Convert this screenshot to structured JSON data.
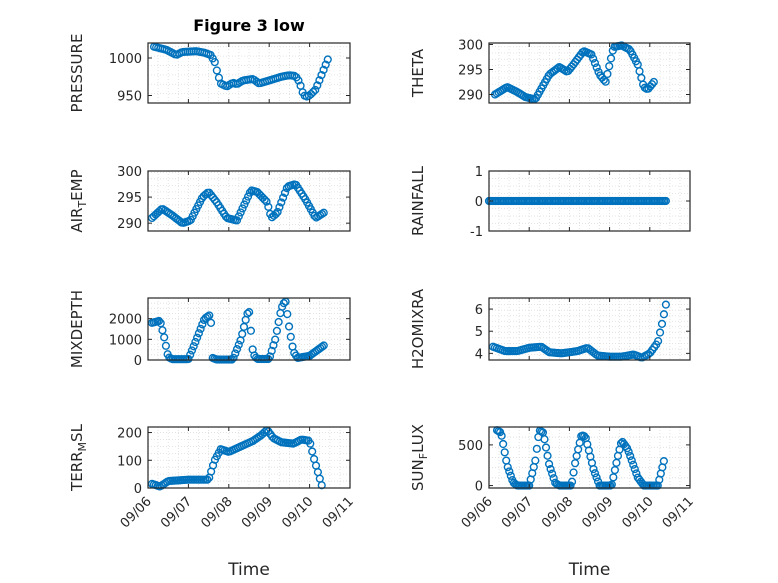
{
  "figure_title": "Figure 3 low",
  "xlabel": "Time",
  "x_ticks": [
    "09/06",
    "09/07",
    "09/08",
    "09/09",
    "09/10",
    "09/11"
  ],
  "colors": {
    "marker": "#0072BD",
    "axis": "#262626",
    "grid": "#dcdcdc"
  },
  "chart_data": [
    {
      "type": "scatter",
      "title": "Figure 3 low",
      "ylabel": "PRESSURE",
      "xlim": [
        0,
        5
      ],
      "ylim": [
        940,
        1020
      ],
      "yticks": [
        950,
        1000
      ],
      "keys": [
        [
          0.15,
          1015
        ],
        [
          0.45,
          1011
        ],
        [
          0.7,
          1004
        ],
        [
          0.85,
          1008
        ],
        [
          1.2,
          1009
        ],
        [
          1.4,
          1007
        ],
        [
          1.55,
          1004
        ],
        [
          1.65,
          995
        ],
        [
          1.72,
          980
        ],
        [
          1.8,
          966
        ],
        [
          1.95,
          962
        ],
        [
          2.1,
          967
        ],
        [
          2.2,
          965
        ],
        [
          2.35,
          970
        ],
        [
          2.6,
          972
        ],
        [
          2.75,
          966
        ],
        [
          3.0,
          970
        ],
        [
          3.3,
          975
        ],
        [
          3.5,
          977
        ],
        [
          3.65,
          976
        ],
        [
          3.75,
          968
        ],
        [
          3.82,
          955
        ],
        [
          3.9,
          948
        ],
        [
          4.0,
          950
        ],
        [
          4.15,
          958
        ],
        [
          4.3,
          978
        ],
        [
          4.45,
          998
        ]
      ],
      "n": 84
    },
    {
      "type": "scatter",
      "ylabel": "THETA",
      "xlim": [
        0,
        5
      ],
      "ylim": [
        288.3,
        300.3
      ],
      "yticks": [
        290,
        295,
        300
      ],
      "keys": [
        [
          0.15,
          290
        ],
        [
          0.45,
          291.5
        ],
        [
          0.7,
          290.5
        ],
        [
          0.9,
          289.5
        ],
        [
          1.15,
          289
        ],
        [
          1.5,
          294
        ],
        [
          1.75,
          295.5
        ],
        [
          1.95,
          294.5
        ],
        [
          2.1,
          296
        ],
        [
          2.35,
          298.7
        ],
        [
          2.55,
          298
        ],
        [
          2.75,
          294
        ],
        [
          2.9,
          292.5
        ],
        [
          3.0,
          296
        ],
        [
          3.1,
          299.5
        ],
        [
          3.3,
          299.8
        ],
        [
          3.5,
          299
        ],
        [
          3.7,
          296
        ],
        [
          3.85,
          291.5
        ],
        [
          3.95,
          291
        ],
        [
          4.1,
          292.5
        ]
      ],
      "n": 90
    },
    {
      "type": "scatter",
      "ylabel": "AIRTEMP",
      "ylabel_main": "AIR",
      "ylabel_sub": "T",
      "ylabel_rest": "EMP",
      "xlim": [
        0,
        5
      ],
      "ylim": [
        288.5,
        300
      ],
      "yticks": [
        290,
        295,
        300
      ],
      "keys": [
        [
          0.1,
          291
        ],
        [
          0.35,
          292.8
        ],
        [
          0.6,
          291.5
        ],
        [
          0.85,
          290
        ],
        [
          1.05,
          290.5
        ],
        [
          1.35,
          295
        ],
        [
          1.5,
          296
        ],
        [
          1.7,
          294
        ],
        [
          1.95,
          291
        ],
        [
          2.2,
          290.5
        ],
        [
          2.35,
          293
        ],
        [
          2.55,
          296.3
        ],
        [
          2.7,
          296
        ],
        [
          2.95,
          294
        ],
        [
          3.05,
          291
        ],
        [
          3.2,
          292
        ],
        [
          3.45,
          297
        ],
        [
          3.65,
          297.5
        ],
        [
          3.9,
          294.5
        ],
        [
          4.15,
          291
        ],
        [
          4.35,
          292
        ]
      ],
      "n": 94
    },
    {
      "type": "scatter",
      "ylabel": "RAINFALL",
      "xlim": [
        0,
        5
      ],
      "ylim": [
        -1,
        1
      ],
      "yticks": [
        -1,
        0,
        1
      ],
      "keys": [
        [
          0.0,
          0
        ],
        [
          4.4,
          0
        ]
      ],
      "n": 110
    },
    {
      "type": "scatter",
      "ylabel": "MIXDEPTH",
      "xlim": [
        0,
        5
      ],
      "ylim": [
        0,
        3000
      ],
      "yticks": [
        0,
        1000,
        2000
      ],
      "keys": [
        [
          0.1,
          1800
        ],
        [
          0.3,
          1900
        ],
        [
          0.4,
          1100
        ],
        [
          0.5,
          150
        ],
        [
          0.6,
          40
        ],
        [
          1.0,
          40
        ],
        [
          1.2,
          1000
        ],
        [
          1.4,
          2000
        ],
        [
          1.55,
          2200
        ],
        [
          1.6,
          100
        ],
        [
          1.7,
          20
        ],
        [
          2.1,
          20
        ],
        [
          2.3,
          1000
        ],
        [
          2.45,
          2200
        ],
        [
          2.5,
          2400
        ],
        [
          2.6,
          300
        ],
        [
          2.7,
          50
        ],
        [
          3.0,
          50
        ],
        [
          3.15,
          1000
        ],
        [
          3.3,
          2500
        ],
        [
          3.4,
          2900
        ],
        [
          3.5,
          1500
        ],
        [
          3.6,
          400
        ],
        [
          3.7,
          100
        ],
        [
          4.0,
          200
        ],
        [
          4.35,
          700
        ]
      ],
      "n": 100
    },
    {
      "type": "scatter",
      "ylabel": "H2OMIXRA",
      "xlim": [
        0,
        5
      ],
      "ylim": [
        3.7,
        6.5
      ],
      "yticks": [
        4,
        5,
        6
      ],
      "keys": [
        [
          0.1,
          4.3
        ],
        [
          0.4,
          4.1
        ],
        [
          0.7,
          4.1
        ],
        [
          1.0,
          4.25
        ],
        [
          1.3,
          4.3
        ],
        [
          1.5,
          4.05
        ],
        [
          1.8,
          4.0
        ],
        [
          2.2,
          4.1
        ],
        [
          2.45,
          4.25
        ],
        [
          2.7,
          3.9
        ],
        [
          3.0,
          3.85
        ],
        [
          3.3,
          3.85
        ],
        [
          3.6,
          3.95
        ],
        [
          3.8,
          3.8
        ],
        [
          4.0,
          4.0
        ],
        [
          4.2,
          4.5
        ],
        [
          4.3,
          5.3
        ],
        [
          4.4,
          6.2
        ]
      ],
      "n": 90
    },
    {
      "type": "scatter",
      "ylabel": "TERRMSL",
      "ylabel_main": "TERR",
      "ylabel_sub": "M",
      "ylabel_rest": "SL",
      "xlim": [
        0,
        5
      ],
      "ylim": [
        0,
        220
      ],
      "yticks": [
        0,
        100,
        200
      ],
      "keys": [
        [
          0.1,
          15
        ],
        [
          0.3,
          5
        ],
        [
          0.5,
          25
        ],
        [
          1.0,
          30
        ],
        [
          1.5,
          30
        ],
        [
          1.65,
          100
        ],
        [
          1.8,
          140
        ],
        [
          2.0,
          130
        ],
        [
          2.3,
          150
        ],
        [
          2.6,
          170
        ],
        [
          2.8,
          190
        ],
        [
          2.95,
          210
        ],
        [
          3.1,
          180
        ],
        [
          3.3,
          165
        ],
        [
          3.6,
          160
        ],
        [
          3.8,
          175
        ],
        [
          4.0,
          170
        ],
        [
          4.1,
          110
        ],
        [
          4.2,
          60
        ],
        [
          4.3,
          10
        ]
      ],
      "n": 90
    },
    {
      "type": "scatter",
      "ylabel": "SUNFLUX",
      "ylabel_main": "SUN",
      "ylabel_sub": "F",
      "ylabel_rest": "LUX",
      "xlim": [
        0,
        5
      ],
      "ylim": [
        -30,
        720
      ],
      "yticks": [
        0,
        500
      ],
      "keys": [
        [
          0.2,
          680
        ],
        [
          0.3,
          650
        ],
        [
          0.45,
          250
        ],
        [
          0.6,
          40
        ],
        [
          0.7,
          0
        ],
        [
          1.0,
          0
        ],
        [
          1.15,
          300
        ],
        [
          1.25,
          680
        ],
        [
          1.35,
          650
        ],
        [
          1.5,
          250
        ],
        [
          1.65,
          30
        ],
        [
          1.75,
          0
        ],
        [
          2.05,
          0
        ],
        [
          2.15,
          300
        ],
        [
          2.3,
          620
        ],
        [
          2.4,
          600
        ],
        [
          2.6,
          200
        ],
        [
          2.75,
          0
        ],
        [
          3.05,
          0
        ],
        [
          3.2,
          350
        ],
        [
          3.3,
          550
        ],
        [
          3.45,
          450
        ],
        [
          3.7,
          100
        ],
        [
          3.85,
          0
        ],
        [
          4.2,
          0
        ],
        [
          4.35,
          300
        ]
      ],
      "n": 110
    }
  ]
}
